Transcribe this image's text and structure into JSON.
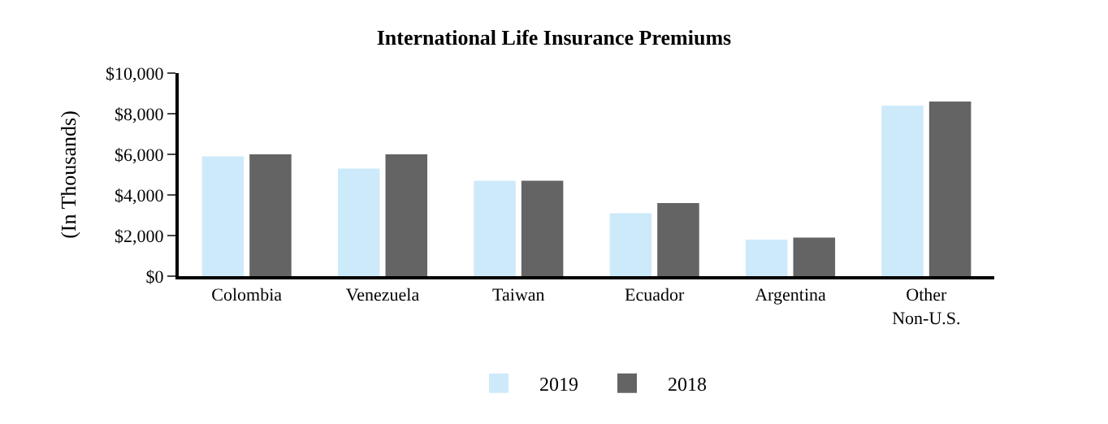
{
  "chart_data": {
    "type": "bar",
    "title": "International Life Insurance Premiums",
    "ylabel": "(In Thousands)",
    "categories": [
      "Colombia",
      "Venezuela",
      "Taiwan",
      "Ecuador",
      "Argentina",
      "Other\nNon-U.S."
    ],
    "series": [
      {
        "name": "2019",
        "color": "#cdeafa",
        "values": [
          5900,
          5300,
          4700,
          3100,
          1800,
          8400
        ]
      },
      {
        "name": "2018",
        "color": "#646464",
        "values": [
          6000,
          6000,
          4700,
          3600,
          1900,
          8600
        ]
      }
    ],
    "ylim": [
      0,
      10000
    ],
    "yticks": [
      {
        "value": 0,
        "label": "$0"
      },
      {
        "value": 2000,
        "label": "$2,000"
      },
      {
        "value": 4000,
        "label": "$4,000"
      },
      {
        "value": 6000,
        "label": "$6,000"
      },
      {
        "value": 8000,
        "label": "$8,000"
      },
      {
        "value": 10000,
        "label": "$10,000"
      }
    ],
    "legend": "bottom"
  }
}
